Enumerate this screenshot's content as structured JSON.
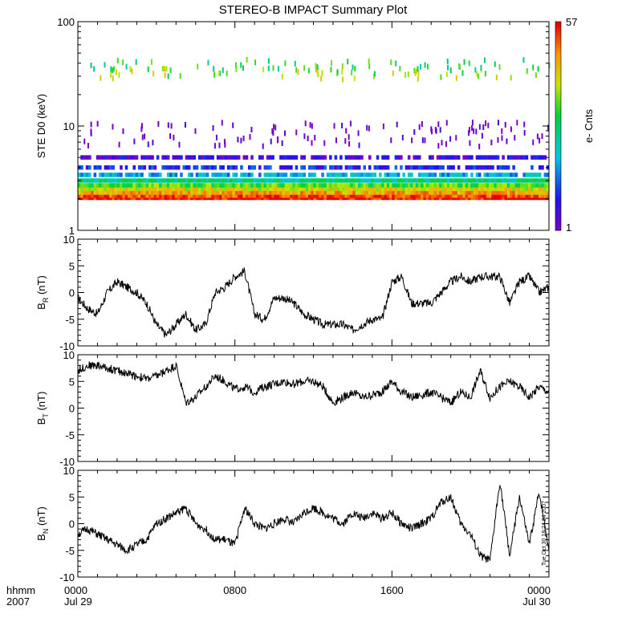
{
  "title": "STEREO-B IMPACT Summary Plot",
  "footer": {
    "time_label": "hhmm",
    "year": "2007"
  },
  "x_ticks": [
    {
      "t": 0,
      "top": "0000",
      "bottom": "Jul 29"
    },
    {
      "t": 8,
      "top": "0800",
      "bottom": ""
    },
    {
      "t": 16,
      "top": "1600",
      "bottom": ""
    },
    {
      "t": 24,
      "top": "0000",
      "bottom": "Jul 30"
    }
  ],
  "timestamp": "Tue Oct 30 18:24:24 2007",
  "colorbar": {
    "label": "e- Cnts",
    "min_label": "1",
    "max_label": "57",
    "min": 1,
    "max": 57
  },
  "colors": {
    "axis": "#000000",
    "trace": "#000000"
  },
  "chart_data": [
    {
      "type": "heatmap",
      "ylabel": "STE D0 (keV)",
      "yscale": "log",
      "ylim": [
        1,
        100
      ],
      "xlim_hours": [
        0,
        24
      ],
      "y_ticks": [
        "1",
        "10",
        "100"
      ],
      "bands": [
        {
          "energy_keV": 2.05,
          "counts": 57
        },
        {
          "energy_keV": 2.15,
          "counts": 45
        },
        {
          "energy_keV": 2.3,
          "counts": 30
        },
        {
          "energy_keV": 2.5,
          "counts": 20
        },
        {
          "energy_keV": 2.7,
          "counts": 12
        },
        {
          "energy_keV": 3.0,
          "counts": 7
        },
        {
          "energy_keV": 3.4,
          "counts": 4
        },
        {
          "energy_keV": 4.0,
          "counts": 2
        },
        {
          "energy_keV": 5.0,
          "counts": 1.5
        }
      ],
      "sparse_levels": [
        {
          "energy_keV": 33,
          "counts": 15
        },
        {
          "energy_keV": 40,
          "counts": 10
        },
        {
          "energy_keV": 7.5,
          "counts": 1
        },
        {
          "energy_keV": 10,
          "counts": 1
        }
      ]
    },
    {
      "type": "line",
      "ylabel": "B_R (nT)",
      "ylabel_main": "B",
      "ylabel_sub": "R",
      "ylabel_unit": "(nT)",
      "ylim": [
        -10,
        10
      ],
      "y_ticks": [
        -10,
        -5,
        0,
        5,
        10
      ],
      "x_hours": [
        0,
        0.5,
        1,
        1.5,
        2,
        2.5,
        3,
        3.5,
        4,
        4.5,
        5,
        5.5,
        6,
        6.5,
        7,
        7.5,
        8,
        8.5,
        9,
        9.5,
        10,
        10.5,
        11,
        11.5,
        12,
        12.5,
        13,
        13.5,
        14,
        14.5,
        15,
        15.5,
        16,
        16.5,
        17,
        17.5,
        18,
        18.5,
        19,
        19.5,
        20,
        20.5,
        21,
        21.5,
        22,
        22.5,
        23,
        23.5,
        24
      ],
      "values": [
        -1,
        -3,
        -4,
        0,
        2,
        1,
        0,
        -2,
        -6,
        -8,
        -6,
        -4,
        -7,
        -6,
        0,
        1,
        3,
        4,
        -4,
        -5,
        -1,
        -1,
        -2,
        -4,
        -5,
        -6,
        -6,
        -6,
        -7,
        -6,
        -5,
        -5,
        2,
        3,
        -2,
        -2,
        -2,
        0,
        2,
        3,
        2,
        3,
        3,
        3,
        -2,
        2,
        3,
        0,
        1
      ]
    },
    {
      "type": "line",
      "ylabel": "B_T (nT)",
      "ylabel_main": "B",
      "ylabel_sub": "T",
      "ylabel_unit": "(nT)",
      "ylim": [
        -10,
        10
      ],
      "y_ticks": [
        -10,
        -5,
        0,
        5,
        10
      ],
      "x_hours": [
        0,
        0.5,
        1,
        1.5,
        2,
        2.5,
        3,
        3.5,
        4,
        4.5,
        5,
        5.5,
        6,
        6.5,
        7,
        7.5,
        8,
        8.5,
        9,
        9.5,
        10,
        10.5,
        11,
        11.5,
        12,
        12.5,
        13,
        13.5,
        14,
        14.5,
        15,
        15.5,
        16,
        16.5,
        17,
        17.5,
        18,
        18.5,
        19,
        19.5,
        20,
        20.5,
        21,
        21.5,
        22,
        22.5,
        23,
        23.5,
        24
      ],
      "values": [
        7,
        8,
        8,
        7.5,
        7,
        6.5,
        6,
        5.5,
        6,
        7,
        8,
        1,
        2,
        4,
        6,
        5,
        3.5,
        4,
        3,
        4,
        4.5,
        5,
        4.5,
        5,
        5,
        4,
        1,
        2,
        3,
        2,
        2.5,
        3,
        5,
        3,
        2,
        2.5,
        3,
        2,
        1,
        3,
        2,
        7,
        2,
        4,
        5,
        4,
        2,
        4,
        3
      ]
    },
    {
      "type": "line",
      "ylabel": "B_N (nT)",
      "ylabel_main": "B",
      "ylabel_sub": "N",
      "ylabel_unit": "(nT)",
      "ylim": [
        -10,
        10
      ],
      "y_ticks": [
        -10,
        -5,
        0,
        5,
        10
      ],
      "x_hours": [
        0,
        0.5,
        1,
        1.5,
        2,
        2.5,
        3,
        3.5,
        4,
        4.5,
        5,
        5.5,
        6,
        6.5,
        7,
        7.5,
        8,
        8.5,
        9,
        9.5,
        10,
        10.5,
        11,
        11.5,
        12,
        12.5,
        13,
        13.5,
        14,
        14.5,
        15,
        15.5,
        16,
        16.5,
        17,
        17.5,
        18,
        18.5,
        19,
        19.5,
        20,
        20.5,
        21,
        21.5,
        22,
        22.5,
        23,
        23.5,
        24
      ],
      "values": [
        -2,
        -1,
        -2,
        -3,
        -4,
        -5,
        -4,
        -3,
        0,
        1,
        2,
        3,
        0,
        -1,
        -3,
        -3,
        -4,
        3,
        0,
        -1,
        0,
        1,
        0,
        2,
        3,
        2,
        1,
        0,
        2,
        1,
        2,
        1,
        2,
        0,
        -1,
        0,
        1,
        4,
        5,
        0,
        -2,
        -6,
        -7,
        8,
        -6,
        5,
        -4,
        6,
        -5
      ]
    }
  ]
}
